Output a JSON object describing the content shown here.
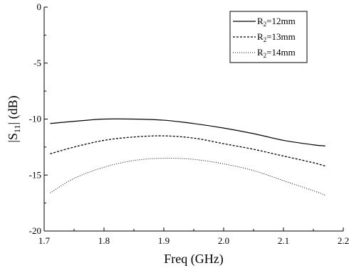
{
  "chart_data": {
    "type": "line",
    "xlabel": "Freq (GHz)",
    "ylabel_main": "|S",
    "ylabel_sub": "11",
    "ylabel_rest": "| (dB)",
    "xlim": [
      1.7,
      2.2
    ],
    "ylim": [
      -20,
      0
    ],
    "x_ticks": [
      1.7,
      1.8,
      1.9,
      2.0,
      2.1,
      2.2
    ],
    "x_tick_labels": [
      "1.7",
      "1.8",
      "1.9",
      "2.0",
      "2.1",
      "2.2"
    ],
    "y_ticks": [
      0,
      -5,
      -10,
      -15,
      -20
    ],
    "y_tick_labels": [
      "0",
      "-5",
      "-10",
      "-15",
      "-20"
    ],
    "grid": false,
    "legend_position": "top-right",
    "x": [
      1.71,
      1.75,
      1.8,
      1.85,
      1.9,
      1.95,
      2.0,
      2.05,
      2.1,
      2.15,
      2.17
    ],
    "series": [
      {
        "legend_main": "R",
        "legend_sub": "2",
        "legend_rest": "=12mm",
        "style": "solid",
        "values": [
          -10.4,
          -10.2,
          -10.0,
          -10.0,
          -10.1,
          -10.4,
          -10.8,
          -11.3,
          -11.9,
          -12.3,
          -12.4
        ]
      },
      {
        "legend_main": "R",
        "legend_sub": "2",
        "legend_rest": "=13mm",
        "style": "dashed",
        "values": [
          -13.1,
          -12.5,
          -11.9,
          -11.6,
          -11.5,
          -11.7,
          -12.2,
          -12.7,
          -13.3,
          -13.9,
          -14.2
        ]
      },
      {
        "legend_main": "R",
        "legend_sub": "2",
        "legend_rest": "=14mm",
        "style": "dotted",
        "values": [
          -16.6,
          -15.3,
          -14.3,
          -13.7,
          -13.5,
          -13.6,
          -14.0,
          -14.6,
          -15.5,
          -16.4,
          -16.8
        ]
      }
    ]
  }
}
